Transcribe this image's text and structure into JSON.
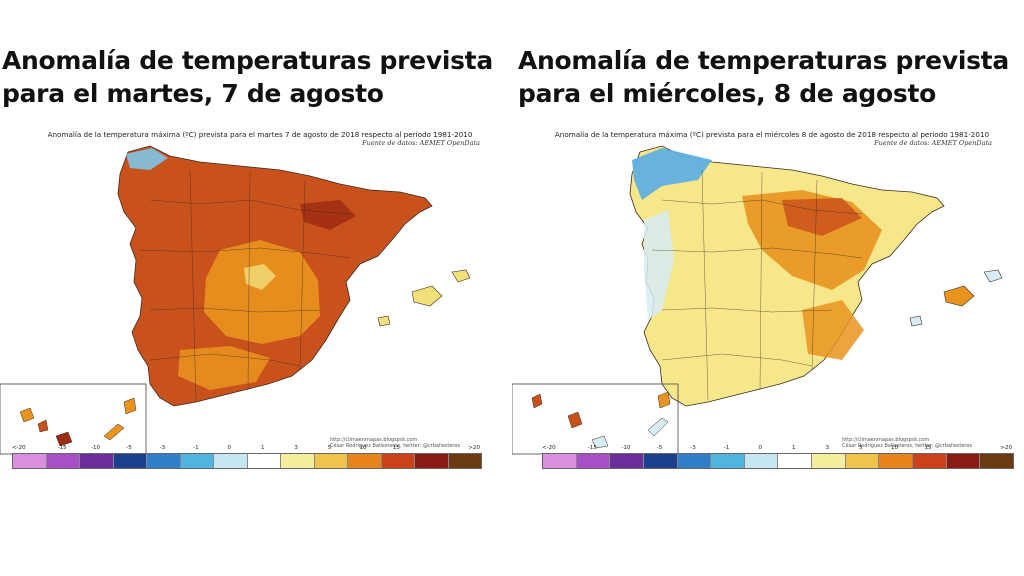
{
  "panels": [
    {
      "headline_line1": "Anomalía de temperaturas prevista",
      "headline_line2": "para el martes, 7 de agosto",
      "map_title": "Anomalía de la temperatura máxima (ºC) prevista para el martes 7 de agosto de 2018 respecto al periodo 1981-2010",
      "map_source": "Fuente de datos: AEMET OpenData",
      "credit_line1": "http://climaenmapas.blogspot.com",
      "credit_line2": "César Rodríguez Ballesteros, twitter: @crballesteros",
      "palette": {
        "base": "#c9521c",
        "secondary": "#e9941f",
        "cool": "#7fc4e8",
        "mild": "#f2e07a",
        "hot": "#9e2c12"
      }
    },
    {
      "headline_line1": "Anomalía de temperaturas prevista",
      "headline_line2": "para el miércoles, 8 de agosto",
      "map_title": "Anomalía de la temperatura máxima (ºC) prevista para el miércoles 8 de agosto de 2018 respecto al periodo 1981-2010",
      "map_source": "Fuente de datos: AEMET OpenData",
      "credit_line1": "http://climaenmapas.blogspot.com",
      "credit_line2": "César Rodríguez Ballesteros, twitter: @crballesteros",
      "palette": {
        "base": "#f6e78a",
        "secondary": "#e9941f",
        "cool": "#5fb0e0",
        "mild": "#d7ecf5",
        "hot": "#c9521c"
      }
    }
  ],
  "legend": {
    "labels": [
      "<-20",
      "-15",
      "-10",
      "-5",
      "-3",
      "-1",
      "0",
      "1",
      "3",
      "5",
      "10",
      "15",
      ">20"
    ],
    "colors": [
      "#d98ee0",
      "#a64fc8",
      "#6a2d9a",
      "#1d3f8f",
      "#2f7fc9",
      "#4fb4e0",
      "#c7e6f3",
      "#ffffff",
      "#f5ee9c",
      "#f0c34a",
      "#e8841c",
      "#c9421a",
      "#8a1a12",
      "#6b3a10"
    ]
  }
}
